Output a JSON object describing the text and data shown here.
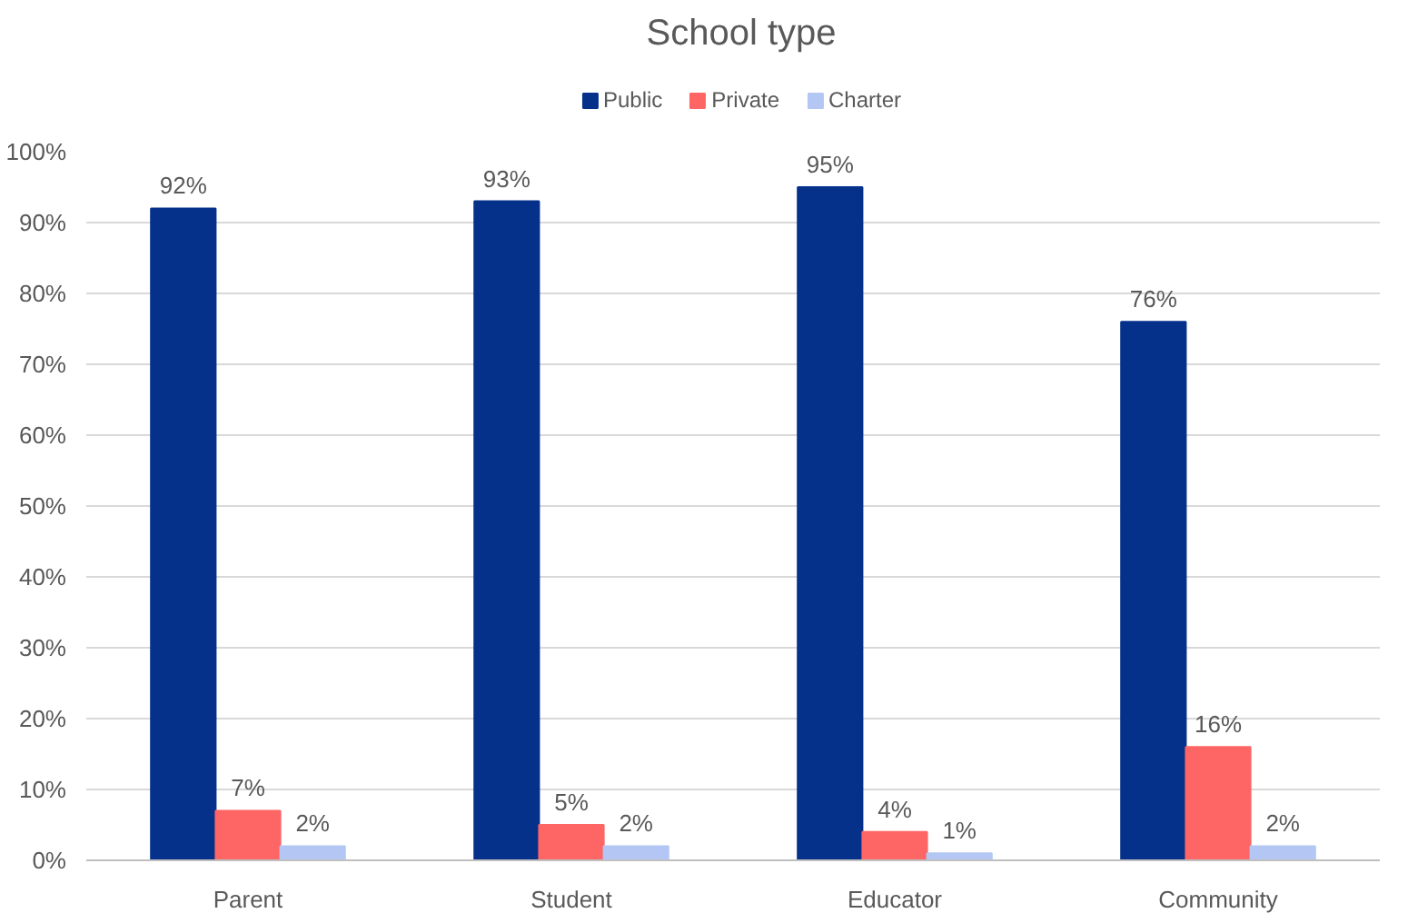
{
  "chart_data": {
    "type": "bar",
    "title": "School type",
    "categories": [
      "Parent",
      "Student",
      "Educator",
      "Community"
    ],
    "series": [
      {
        "name": "Public",
        "color": "#05318a",
        "values": [
          92,
          93,
          95,
          76
        ],
        "value_labels": [
          "92%",
          "93%",
          "95%",
          "76%"
        ]
      },
      {
        "name": "Private",
        "color": "#fe6565",
        "values": [
          7,
          5,
          4,
          16
        ],
        "value_labels": [
          "7%",
          "5%",
          "4%",
          "16%"
        ]
      },
      {
        "name": "Charter",
        "color": "#b4c7f4",
        "values": [
          2,
          2,
          1,
          2
        ],
        "value_labels": [
          "2%",
          "2%",
          "1%",
          "2%"
        ]
      }
    ],
    "ylim": [
      0,
      100
    ],
    "yticks": [
      {
        "value": 0,
        "label": "0%"
      },
      {
        "value": 10,
        "label": "10%"
      },
      {
        "value": 20,
        "label": "20%"
      },
      {
        "value": 30,
        "label": "30%"
      },
      {
        "value": 40,
        "label": "40%"
      },
      {
        "value": 50,
        "label": "50%"
      },
      {
        "value": 60,
        "label": "60%"
      },
      {
        "value": 70,
        "label": "70%"
      },
      {
        "value": 80,
        "label": "80%"
      },
      {
        "value": 90,
        "label": "90%"
      },
      {
        "value": 100,
        "label": "100%"
      }
    ],
    "grid": "y",
    "legend": "top"
  }
}
